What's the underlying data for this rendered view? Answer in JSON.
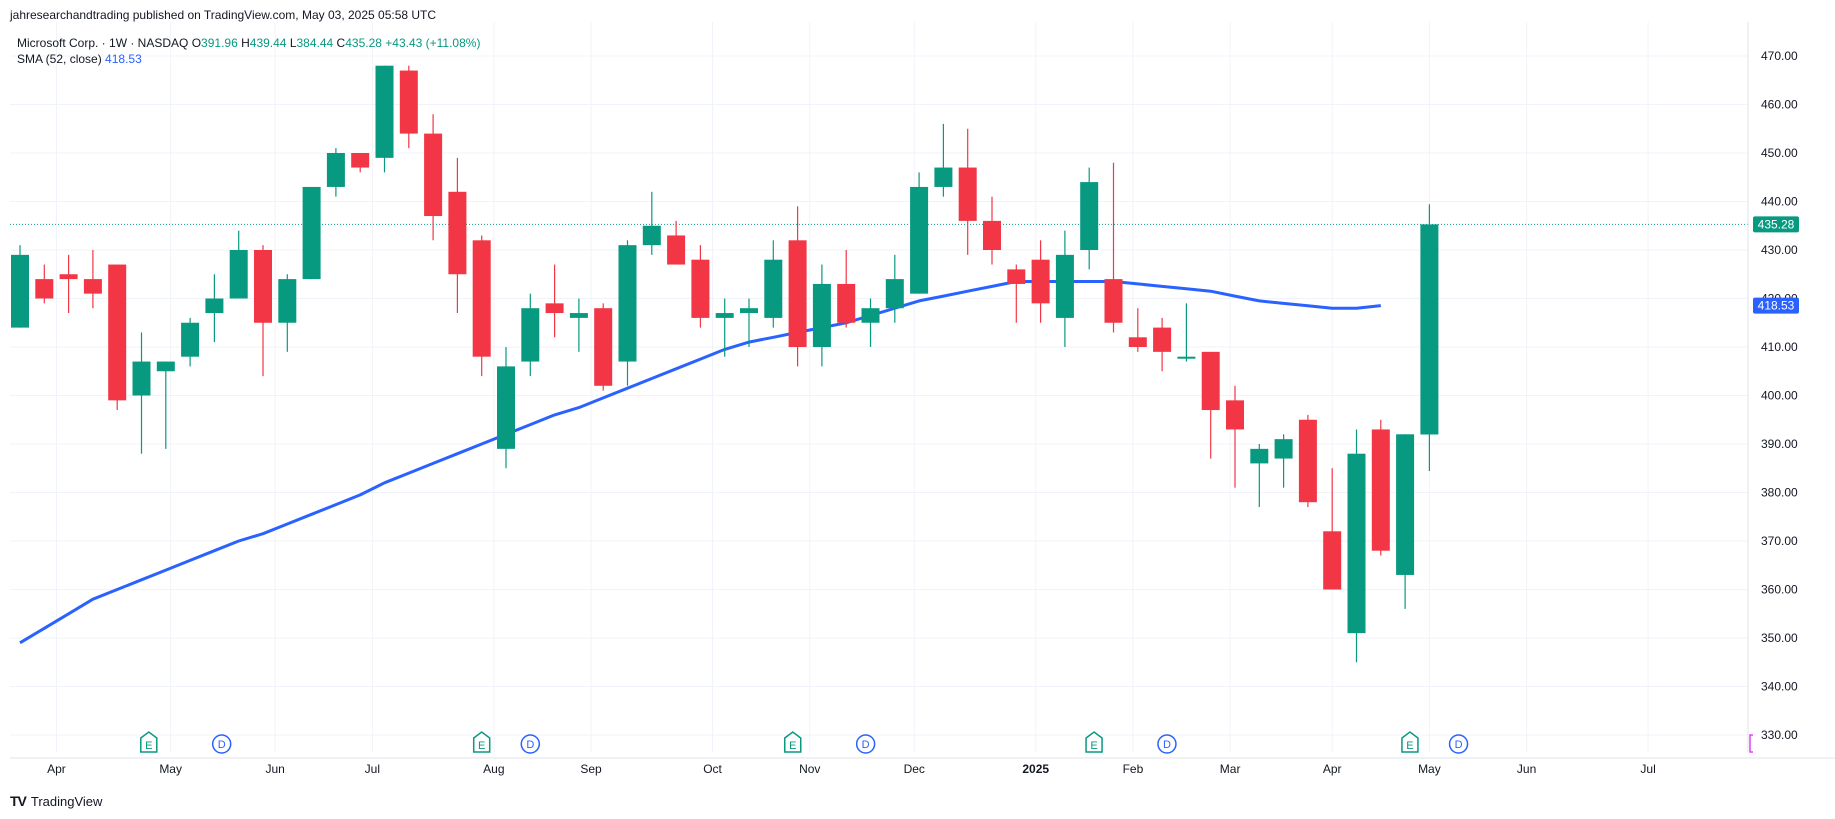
{
  "publish_line": "jahresearchandtrading published on TradingView.com, May 03, 2025 05:58 UTC",
  "legend": {
    "symbol": "Microsoft Corp. · 1W · NASDAQ",
    "o_label": "O",
    "o_value": "391.96",
    "h_label": "H",
    "h_value": "439.44",
    "l_label": "L",
    "l_value": "384.44",
    "c_label": "C",
    "c_value": "435.28",
    "change": "+43.43 (+11.08%)",
    "sma_label": "SMA (52, close)",
    "sma_value": "418.53"
  },
  "price_tag": "435.28",
  "sma_tag": "418.53",
  "footer_logo": "TradingView",
  "colors": {
    "up": "#089981",
    "down": "#f23645",
    "sma": "#2962ff",
    "grid": "#f0f3fa",
    "axis_text": "#131722",
    "marker": "#089981",
    "dividend": "#2962ff"
  },
  "chart_data": {
    "type": "candlestick",
    "title": "",
    "symbol": "Microsoft Corp.",
    "interval": "1W",
    "exchange": "NASDAQ",
    "ylim": [
      324,
      473
    ],
    "y_ticks": [
      "470.00",
      "460.00",
      "450.00",
      "440.00",
      "430.00",
      "420.00",
      "410.00",
      "400.00",
      "390.00",
      "380.00",
      "370.00",
      "360.00",
      "350.00",
      "340.00",
      "330.00"
    ],
    "x_ticks": [
      {
        "label": "Apr",
        "index": 1.5
      },
      {
        "label": "May",
        "index": 6.2
      },
      {
        "label": "Jun",
        "index": 10.5
      },
      {
        "label": "Jul",
        "index": 14.5
      },
      {
        "label": "Aug",
        "index": 19.5
      },
      {
        "label": "Sep",
        "index": 23.5
      },
      {
        "label": "Oct",
        "index": 28.5
      },
      {
        "label": "Nov",
        "index": 32.5
      },
      {
        "label": "Dec",
        "index": 36.8
      },
      {
        "label": "2025",
        "index": 41.8,
        "bold": true
      },
      {
        "label": "Feb",
        "index": 45.8
      },
      {
        "label": "Mar",
        "index": 49.8
      },
      {
        "label": "Apr",
        "index": 54
      },
      {
        "label": "May",
        "index": 58
      },
      {
        "label": "Jun",
        "index": 62
      },
      {
        "label": "Jul",
        "index": 67
      }
    ],
    "candles": [
      {
        "o": 414,
        "h": 431,
        "l": 414,
        "c": 429
      },
      {
        "o": 424,
        "h": 427,
        "l": 419,
        "c": 420
      },
      {
        "o": 425,
        "h": 429,
        "l": 417,
        "c": 424
      },
      {
        "o": 424,
        "h": 430,
        "l": 418,
        "c": 421
      },
      {
        "o": 427,
        "h": 427,
        "l": 397,
        "c": 399
      },
      {
        "o": 400,
        "h": 413,
        "l": 388,
        "c": 407
      },
      {
        "o": 405,
        "h": 407,
        "l": 389,
        "c": 407
      },
      {
        "o": 408,
        "h": 416,
        "l": 406,
        "c": 415
      },
      {
        "o": 417,
        "h": 425,
        "l": 411,
        "c": 420
      },
      {
        "o": 420,
        "h": 434,
        "l": 420,
        "c": 430
      },
      {
        "o": 430,
        "h": 431,
        "l": 404,
        "c": 415
      },
      {
        "o": 415,
        "h": 425,
        "l": 409,
        "c": 424
      },
      {
        "o": 424,
        "h": 443,
        "l": 424,
        "c": 443
      },
      {
        "o": 443,
        "h": 451,
        "l": 441,
        "c": 450
      },
      {
        "o": 450,
        "h": 450,
        "l": 446,
        "c": 447
      },
      {
        "o": 449,
        "h": 468,
        "l": 446,
        "c": 468
      },
      {
        "o": 467,
        "h": 468,
        "l": 451,
        "c": 454
      },
      {
        "o": 454,
        "h": 458,
        "l": 432,
        "c": 437
      },
      {
        "o": 442,
        "h": 449,
        "l": 417,
        "c": 425
      },
      {
        "o": 432,
        "h": 433,
        "l": 404,
        "c": 408
      },
      {
        "o": 389,
        "h": 410,
        "l": 385,
        "c": 406
      },
      {
        "o": 407,
        "h": 421,
        "l": 404,
        "c": 418
      },
      {
        "o": 419,
        "h": 427,
        "l": 412,
        "c": 417
      },
      {
        "o": 416,
        "h": 420,
        "l": 409,
        "c": 417
      },
      {
        "o": 418,
        "h": 419,
        "l": 401,
        "c": 402
      },
      {
        "o": 407,
        "h": 432,
        "l": 402,
        "c": 431
      },
      {
        "o": 431,
        "h": 442,
        "l": 429,
        "c": 435
      },
      {
        "o": 433,
        "h": 436,
        "l": 427,
        "c": 427
      },
      {
        "o": 428,
        "h": 431,
        "l": 414,
        "c": 416
      },
      {
        "o": 416,
        "h": 420,
        "l": 408,
        "c": 417
      },
      {
        "o": 417,
        "h": 420,
        "l": 410,
        "c": 418
      },
      {
        "o": 416,
        "h": 432,
        "l": 414,
        "c": 428
      },
      {
        "o": 432,
        "h": 439,
        "l": 406,
        "c": 410
      },
      {
        "o": 410,
        "h": 427,
        "l": 406,
        "c": 423
      },
      {
        "o": 423,
        "h": 430,
        "l": 414,
        "c": 415
      },
      {
        "o": 415,
        "h": 420,
        "l": 410,
        "c": 418
      },
      {
        "o": 418,
        "h": 429,
        "l": 415,
        "c": 424
      },
      {
        "o": 421,
        "h": 446,
        "l": 421,
        "c": 443
      },
      {
        "o": 443,
        "h": 456,
        "l": 441,
        "c": 447
      },
      {
        "o": 447,
        "h": 455,
        "l": 429,
        "c": 436
      },
      {
        "o": 436,
        "h": 441,
        "l": 427,
        "c": 430
      },
      {
        "o": 426,
        "h": 427,
        "l": 415,
        "c": 423
      },
      {
        "o": 428,
        "h": 432,
        "l": 415,
        "c": 419
      },
      {
        "o": 416,
        "h": 434,
        "l": 410,
        "c": 429
      },
      {
        "o": 430,
        "h": 447,
        "l": 426,
        "c": 444
      },
      {
        "o": 424,
        "h": 448,
        "l": 413,
        "c": 415
      },
      {
        "o": 412,
        "h": 418,
        "l": 409,
        "c": 410
      },
      {
        "o": 414,
        "h": 416,
        "l": 405,
        "c": 409
      },
      {
        "o": 408,
        "h": 419,
        "l": 407,
        "c": 408
      },
      {
        "o": 409,
        "h": 409,
        "l": 387,
        "c": 397
      },
      {
        "o": 399,
        "h": 402,
        "l": 381,
        "c": 393
      },
      {
        "o": 386,
        "h": 390,
        "l": 377,
        "c": 389
      },
      {
        "o": 387,
        "h": 392,
        "l": 381,
        "c": 391
      },
      {
        "o": 395,
        "h": 396,
        "l": 377,
        "c": 378
      },
      {
        "o": 372,
        "h": 385,
        "l": 360,
        "c": 360
      },
      {
        "o": 351,
        "h": 393,
        "l": 345,
        "c": 388
      },
      {
        "o": 393,
        "h": 395,
        "l": 367,
        "c": 368
      },
      {
        "o": 363,
        "h": 392,
        "l": 356,
        "c": 392
      },
      {
        "o": 391.96,
        "h": 439.44,
        "l": 384.44,
        "c": 435.28
      }
    ],
    "series": [
      {
        "name": "SMA (52, close)",
        "values": [
          349,
          352,
          355,
          358,
          360,
          362,
          364,
          366,
          368,
          370,
          371.5,
          373.5,
          375.5,
          377.5,
          379.5,
          382,
          384,
          386,
          388,
          390,
          392,
          394,
          396,
          397.5,
          399.5,
          401.5,
          403.5,
          405.5,
          407.5,
          409.5,
          411,
          412,
          413,
          414,
          415,
          416.5,
          418,
          419.5,
          420.5,
          421.5,
          422.5,
          423.5,
          423.5,
          423.5,
          423.5,
          423.5,
          423,
          422.5,
          422,
          421.5,
          420.5,
          419.5,
          419,
          418.5,
          418,
          418,
          418.53
        ]
      }
    ],
    "last_price": 435.28,
    "earnings_markers": [
      {
        "label": "E",
        "index": 5.3
      },
      {
        "label": "E",
        "index": 19
      },
      {
        "label": "E",
        "index": 31.8
      },
      {
        "label": "E",
        "index": 44.2
      },
      {
        "label": "E",
        "index": 57.2
      }
    ],
    "dividend_markers": [
      {
        "label": "D",
        "index": 8.3
      },
      {
        "label": "D",
        "index": 21
      },
      {
        "label": "D",
        "index": 34.8
      },
      {
        "label": "D",
        "index": 47.2
      },
      {
        "label": "D",
        "index": 59.2
      }
    ],
    "grid": true,
    "legend_position": "top-left"
  }
}
